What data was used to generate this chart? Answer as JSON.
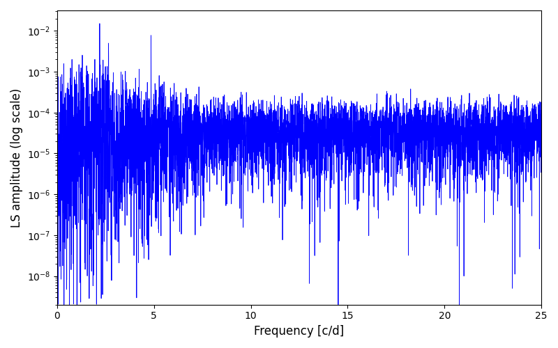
{
  "xlabel": "Frequency [c/d]",
  "ylabel": "LS amplitude (log scale)",
  "xlim": [
    0,
    25
  ],
  "ylim_log": [
    -8.7,
    -1.5
  ],
  "line_color": "#0000ff",
  "line_width": 0.6,
  "background_color": "#ffffff",
  "figsize": [
    8.0,
    5.0
  ],
  "dpi": 100,
  "seed": 42,
  "n_points": 5000,
  "freq_max": 25.0
}
